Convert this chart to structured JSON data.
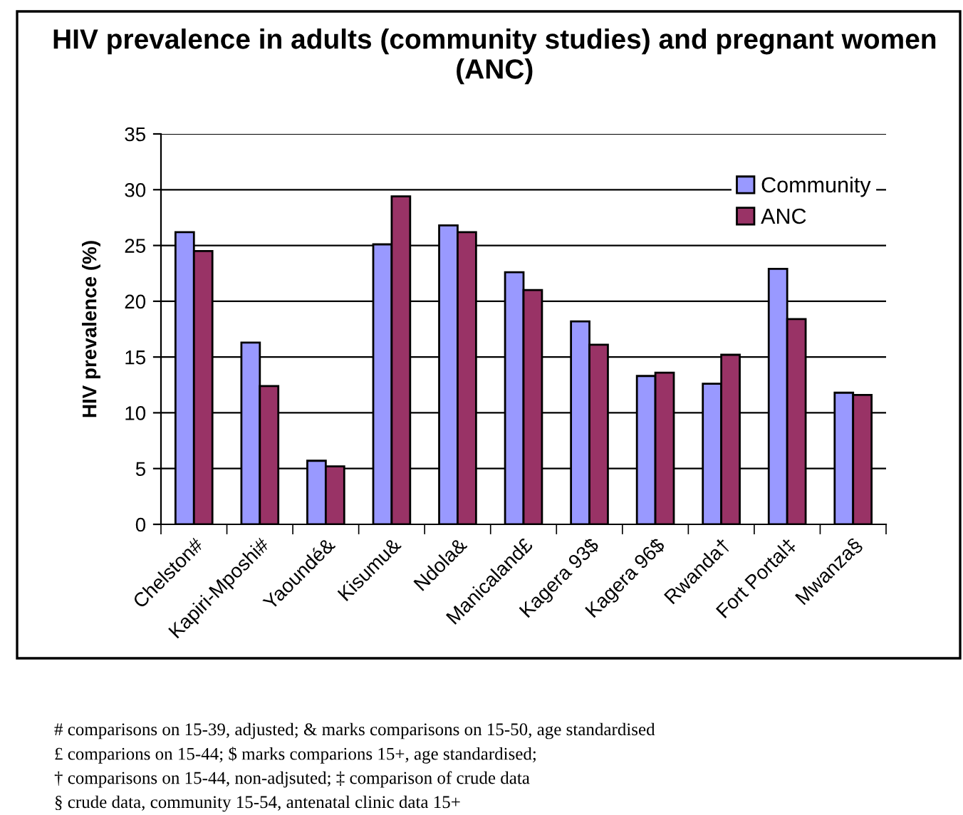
{
  "chart_data": {
    "type": "bar",
    "title": "HIV prevalence in adults (community studies) and pregnant women (ANC)",
    "ylabel": "HIV prevalence (%)",
    "categories": [
      "Chelston#",
      "Kapiri-Mposhi#",
      "Yaoundé&",
      "Kisumu&",
      "Ndola&",
      "Manicaland£",
      "Kagera 93$",
      "Kagera 96$",
      "Rwanda†",
      "Fort Portal‡",
      "Mwanza§"
    ],
    "series": [
      {
        "name": "Community",
        "color": "#9999ff",
        "values": [
          26.2,
          16.3,
          5.7,
          25.1,
          26.8,
          22.6,
          18.2,
          13.3,
          12.6,
          22.9,
          11.8
        ]
      },
      {
        "name": "ANC",
        "color": "#993366",
        "values": [
          24.5,
          12.4,
          5.2,
          29.4,
          26.2,
          21.0,
          16.1,
          13.6,
          15.2,
          18.4,
          11.6
        ]
      }
    ],
    "ylim": [
      0,
      35
    ],
    "yticks": [
      0,
      5,
      10,
      15,
      20,
      25,
      30,
      35
    ],
    "grid": "y",
    "legend": "top right",
    "annotations": [
      "# comparisons on 15-39, adjusted; & marks comparisons on 15-50, age standardised",
      "£ comparions on 15-44; $ marks comparions 15+, age standardised;",
      "† comparisons on 15-44, non-adjsuted; ‡ comparison of crude data",
      "§ crude data, community 15-54, antenatal clinic data 15+"
    ]
  }
}
